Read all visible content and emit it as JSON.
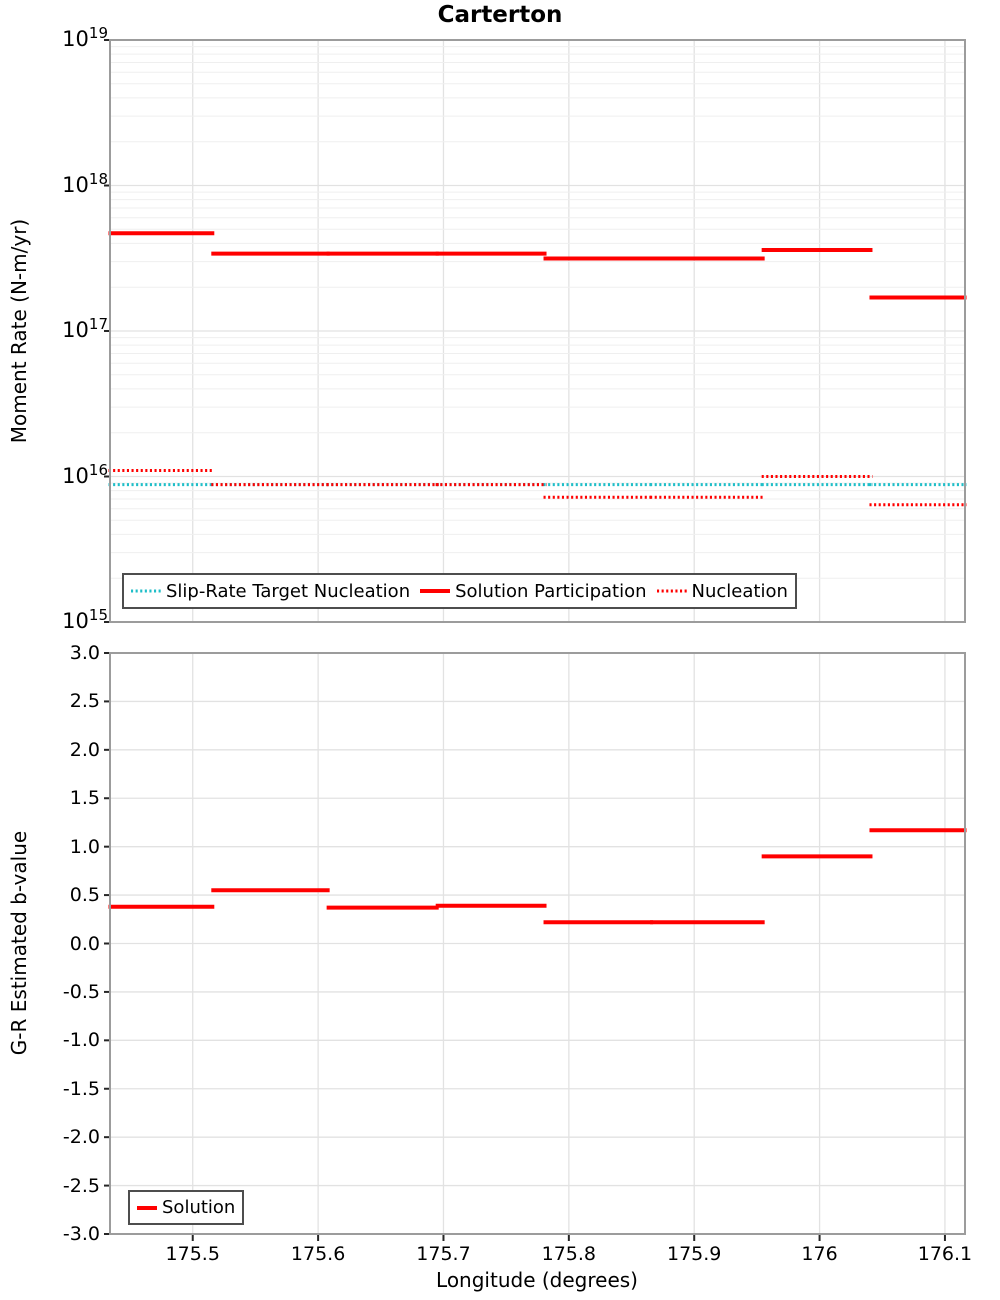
{
  "title": "Carterton",
  "colors": {
    "red": "#ff0000",
    "cyan": "#1fbec8",
    "grid_major": "#e2e2e2",
    "grid_minor": "#efefef",
    "plot_border": "#9c9c9c",
    "tick": "#262626",
    "legend_border": "#4d4d4d"
  },
  "x_axis": {
    "label": "Longitude (degrees)",
    "tick_labels": [
      "175.5",
      "175.6",
      "175.7",
      "175.8",
      "175.9",
      "176",
      "176.1"
    ],
    "tick_values": [
      175.5,
      175.6,
      175.7,
      175.8,
      175.9,
      176.0,
      176.1
    ],
    "min": 175.434,
    "max": 176.116
  },
  "top_chart": {
    "ylabel": "Moment Rate (N-m/yr)",
    "yscale": "log",
    "y_tick_exponents": [
      19,
      18,
      17,
      16,
      15
    ],
    "y_tick_base": "10",
    "legend": [
      {
        "label": "Slip-Rate Target Nucleation",
        "color": "#1fbec8",
        "style": "dotted"
      },
      {
        "label": "Solution Participation",
        "color": "#ff0000",
        "style": "solid"
      },
      {
        "label": "Nucleation",
        "color": "#ff0000",
        "style": "dotted"
      }
    ]
  },
  "bottom_chart": {
    "ylabel": "G-R Estimated b-value",
    "y_tick_labels": [
      "3.0",
      "2.5",
      "2.0",
      "1.5",
      "1.0",
      "0.5",
      "0.0",
      "-0.5",
      "-1.0",
      "-1.5",
      "-2.0",
      "-2.5",
      "-3.0"
    ],
    "y_tick_values": [
      3,
      2.5,
      2,
      1.5,
      1,
      0.5,
      0,
      -0.5,
      -1,
      -1.5,
      -2,
      -2.5,
      -3
    ],
    "legend": [
      {
        "label": "Solution",
        "color": "#ff0000",
        "style": "solid"
      }
    ]
  },
  "chart_data": [
    {
      "type": "line",
      "title": "Carterton",
      "xlabel": "Longitude (degrees)",
      "ylabel": "Moment Rate (N-m/yr)",
      "yscale": "log",
      "ylim": [
        1000000000000000.0,
        1e+19
      ],
      "xlim": [
        175.434,
        176.116
      ],
      "grid": true,
      "legend_position": "lower left",
      "x_edges": [
        175.434,
        175.516,
        175.608,
        175.695,
        175.781,
        175.866,
        175.955,
        176.041,
        176.116
      ],
      "series": [
        {
          "name": "Slip-Rate Target Nucleation",
          "color": "#1fbec8",
          "style": "dotted",
          "values": [
            8800000000000000.0,
            8800000000000000.0,
            8800000000000000.0,
            8800000000000000.0,
            8800000000000000.0,
            8800000000000000.0,
            8800000000000000.0,
            8800000000000000.0
          ]
        },
        {
          "name": "Solution Participation",
          "color": "#ff0000",
          "style": "solid",
          "values": [
            4.7e+17,
            3.4e+17,
            3.4e+17,
            3.4e+17,
            3.15e+17,
            3.15e+17,
            3.6e+17,
            1.7e+17
          ]
        },
        {
          "name": "Nucleation",
          "color": "#ff0000",
          "style": "dotted",
          "values": [
            1.1e+16,
            8800000000000000.0,
            8800000000000000.0,
            8800000000000000.0,
            7200000000000000.0,
            7200000000000000.0,
            1e+16,
            6400000000000000.0
          ]
        }
      ]
    },
    {
      "type": "line",
      "title": "",
      "xlabel": "Longitude (degrees)",
      "ylabel": "G-R Estimated b-value",
      "yscale": "linear",
      "ylim": [
        -3,
        3
      ],
      "xlim": [
        175.434,
        176.116
      ],
      "grid": true,
      "legend_position": "lower left",
      "x_edges": [
        175.434,
        175.516,
        175.608,
        175.695,
        175.781,
        175.866,
        175.955,
        176.041,
        176.116
      ],
      "series": [
        {
          "name": "Solution",
          "color": "#ff0000",
          "style": "solid",
          "values": [
            0.38,
            0.55,
            0.37,
            0.39,
            0.22,
            0.22,
            0.9,
            1.17
          ]
        }
      ]
    }
  ]
}
